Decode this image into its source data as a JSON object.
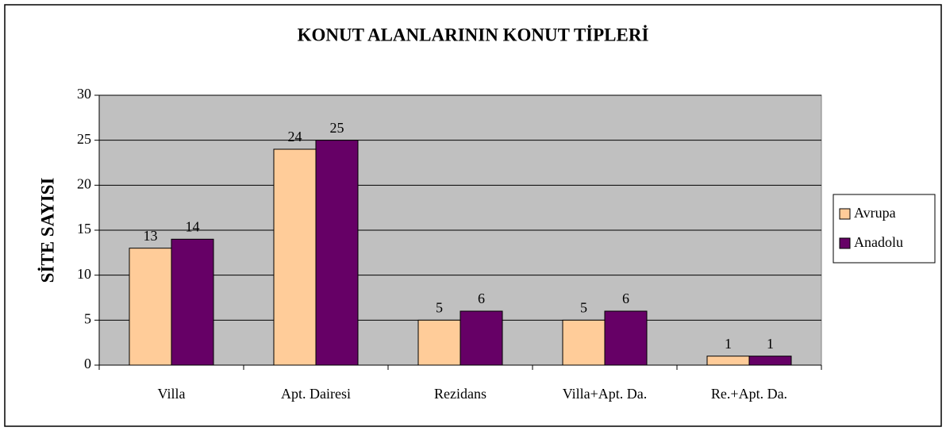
{
  "chart_data": {
    "type": "bar",
    "title": "KONUT ALANLARININ KONUT TİPLERİ",
    "y_label": "SİTE SAYISI",
    "categories": [
      "Villa",
      "Apt. Dairesi",
      "Rezidans",
      "Villa+Apt. Da.",
      "Re.+Apt. Da."
    ],
    "series": [
      {
        "name": "Avrupa",
        "color": "#ffcc99",
        "values": [
          13,
          24,
          5,
          5,
          1
        ]
      },
      {
        "name": "Anadolu",
        "color": "#660066",
        "values": [
          14,
          25,
          6,
          6,
          1
        ]
      }
    ],
    "ylim": [
      0,
      30
    ],
    "yticks": [
      0,
      5,
      10,
      15,
      20,
      25,
      30
    ],
    "grid": true,
    "legend": "right"
  }
}
